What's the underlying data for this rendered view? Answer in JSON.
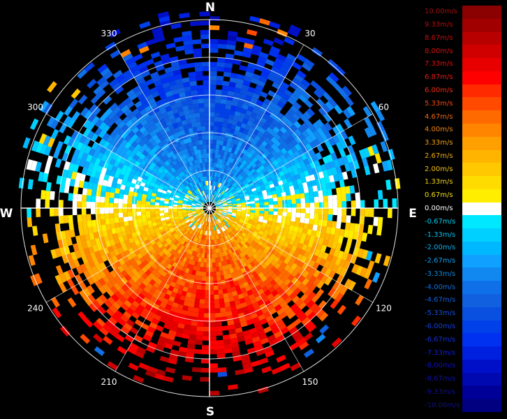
{
  "chart_data": {
    "type": "polar-radar",
    "cardinals": {
      "n": "N",
      "e": "E",
      "s": "S",
      "w": "W"
    },
    "azimuth_labels": [
      {
        "deg": 30,
        "text": "30"
      },
      {
        "deg": 60,
        "text": "60"
      },
      {
        "deg": 120,
        "text": "120"
      },
      {
        "deg": 150,
        "text": "150"
      },
      {
        "deg": 210,
        "text": "210"
      },
      {
        "deg": 240,
        "text": "240"
      },
      {
        "deg": 300,
        "text": "300"
      },
      {
        "deg": 330,
        "text": "330"
      }
    ],
    "range_ring_count": 5,
    "spoke_step_deg": 30,
    "legend": [
      {
        "label": "10.00m/s",
        "color": "#8b0000",
        "text_color": "#a01010"
      },
      {
        "label": "9.33m/s",
        "color": "#a00000",
        "text_color": "#b01010"
      },
      {
        "label": "8.67m/s",
        "color": "#b80000",
        "text_color": "#c01010"
      },
      {
        "label": "8.00m/s",
        "color": "#d00000",
        "text_color": "#d01010"
      },
      {
        "label": "7.33m/s",
        "color": "#e80000",
        "text_color": "#e01010"
      },
      {
        "label": "6.87m/s",
        "color": "#ff0000",
        "text_color": "#ee1a1a"
      },
      {
        "label": "6.00m/s",
        "color": "#ff2a00",
        "text_color": "#f02a10"
      },
      {
        "label": "5.33m/s",
        "color": "#ff4a00",
        "text_color": "#f04a10"
      },
      {
        "label": "4.67m/s",
        "color": "#ff6a00",
        "text_color": "#f06a10"
      },
      {
        "label": "4.00m/s",
        "color": "#ff8500",
        "text_color": "#f08510"
      },
      {
        "label": "3.33m/s",
        "color": "#ffa000",
        "text_color": "#f0a010"
      },
      {
        "label": "2.67m/s",
        "color": "#ffb400",
        "text_color": "#f0b010"
      },
      {
        "label": "2.00m/s",
        "color": "#ffc800",
        "text_color": "#f0c010"
      },
      {
        "label": "1.33m/s",
        "color": "#ffdc00",
        "text_color": "#f0d010"
      },
      {
        "label": "0.67m/s",
        "color": "#ffee00",
        "text_color": "#f0e010"
      },
      {
        "label": "0.00m/s",
        "color": "#ffffff",
        "text_color": "#ffffff"
      },
      {
        "label": "-0.67m/s",
        "color": "#00e8ff",
        "text_color": "#00d0f0"
      },
      {
        "label": "-1.33m/s",
        "color": "#00d0ff",
        "text_color": "#00c0f0"
      },
      {
        "label": "-2.00m/s",
        "color": "#00b8ff",
        "text_color": "#10b0f0"
      },
      {
        "label": "-2.67m/s",
        "color": "#10a0ff",
        "text_color": "#10a0f0"
      },
      {
        "label": "-3.33m/s",
        "color": "#1088f0",
        "text_color": "#1088e0"
      },
      {
        "label": "-4.00m/s",
        "color": "#1070e8",
        "text_color": "#1070e0"
      },
      {
        "label": "-4.67m/s",
        "color": "#1060e0",
        "text_color": "#1060e0"
      },
      {
        "label": "-5.33m/s",
        "color": "#0a50e0",
        "text_color": "#1050e0"
      },
      {
        "label": "-6.00m/s",
        "color": "#0040e8",
        "text_color": "#1040e0"
      },
      {
        "label": "-6.67m/s",
        "color": "#0030f0",
        "text_color": "#1030e0"
      },
      {
        "label": "-7.33m/s",
        "color": "#0020e0",
        "text_color": "#1020d0"
      },
      {
        "label": "-8.00m/s",
        "color": "#0010c8",
        "text_color": "#1010c0"
      },
      {
        "label": "-8.67m/s",
        "color": "#0008b0",
        "text_color": "#1010a8"
      },
      {
        "label": "-9.33m/s",
        "color": "#000098",
        "text_color": "#101090"
      },
      {
        "label": "-10.00m/s",
        "color": "#000080",
        "text_color": "#101080"
      }
    ]
  }
}
